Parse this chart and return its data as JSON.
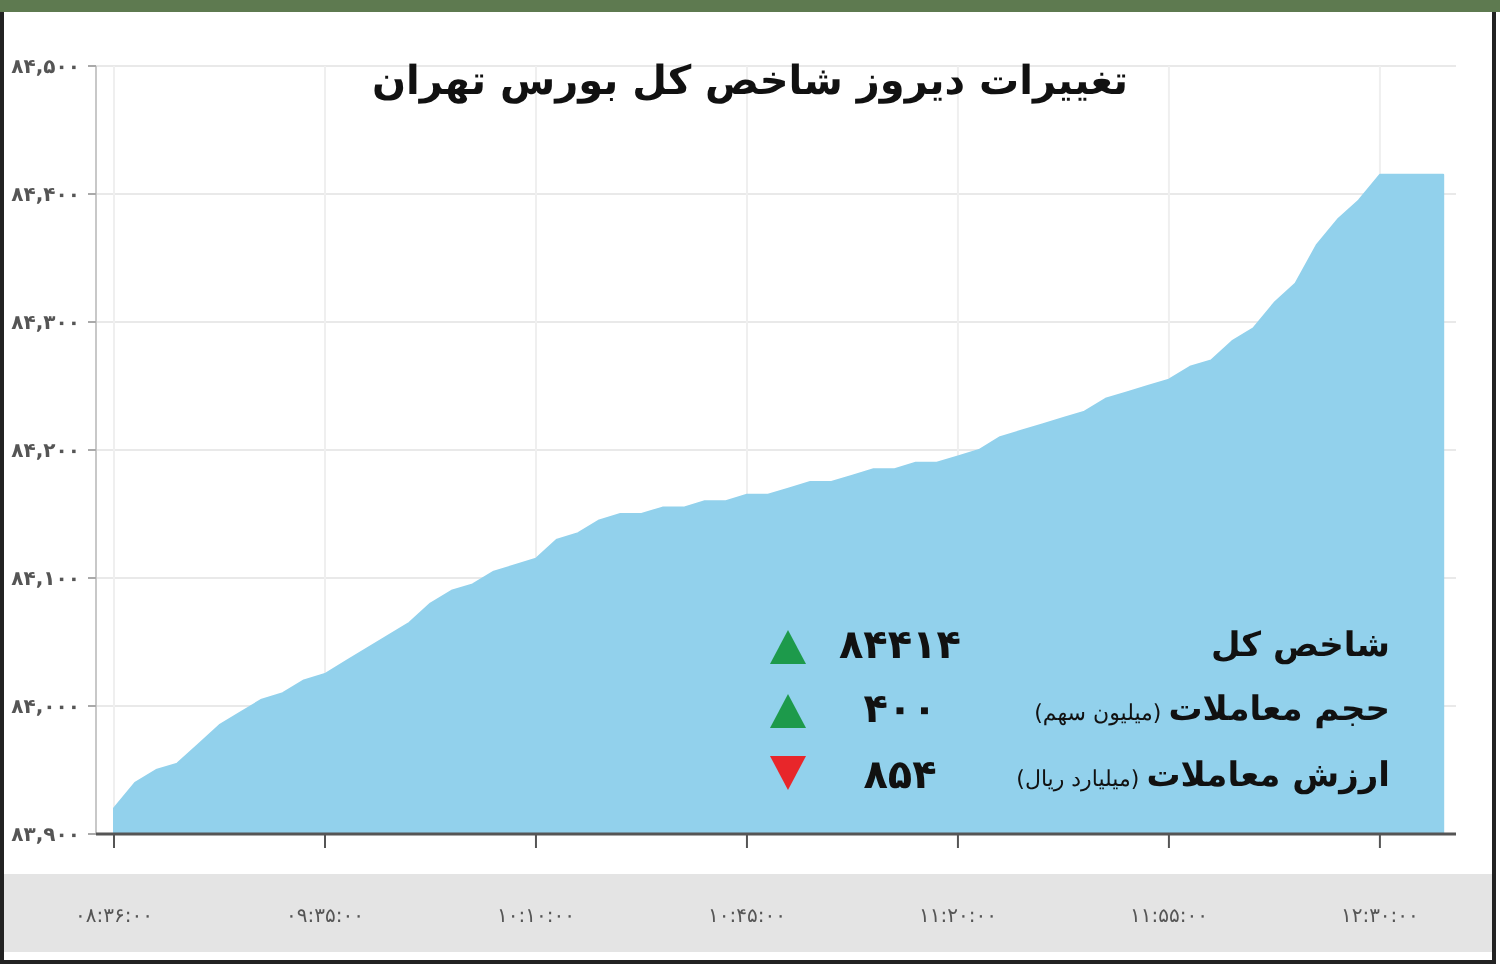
{
  "chart_data": {
    "type": "area",
    "title": "تغییرات دیروز شاخص کل بورس تهران",
    "categories": [
      "۰۸:۳۶:۰۰",
      null,
      null,
      null,
      null,
      null,
      null,
      null,
      null,
      null,
      "۰۹:۳۵:۰۰",
      null,
      null,
      null,
      null,
      null,
      null,
      null,
      null,
      null,
      "۱۰:۱۰:۰۰",
      null,
      null,
      null,
      null,
      null,
      null,
      null,
      null,
      null,
      "۱۰:۴۵:۰۰",
      null,
      null,
      null,
      null,
      null,
      null,
      null,
      null,
      null,
      "۱۱:۲۰:۰۰",
      null,
      null,
      null,
      null,
      null,
      null,
      null,
      null,
      null,
      "۱۱:۵۵:۰۰",
      null,
      null,
      null,
      null,
      null,
      null,
      null,
      null,
      null,
      "۱۲:۳۰:۰۰",
      null,
      null,
      null
    ],
    "values": [
      83920,
      83940,
      83950,
      83955,
      83970,
      83985,
      83995,
      84005,
      84010,
      84020,
      84025,
      84035,
      84045,
      84055,
      84065,
      84080,
      84090,
      84095,
      84105,
      84110,
      84115,
      84130,
      84135,
      84145,
      84150,
      84150,
      84155,
      84155,
      84160,
      84160,
      84165,
      84165,
      84170,
      84175,
      84175,
      84180,
      84185,
      84185,
      84190,
      84190,
      84195,
      84200,
      84210,
      84215,
      84220,
      84225,
      84230,
      84240,
      84245,
      84250,
      84255,
      84265,
      84270,
      84285,
      84295,
      84315,
      84330,
      84360,
      84380,
      84395,
      84415,
      84415,
      84415,
      84415
    ],
    "color": "#92d1ec",
    "ylim": [
      83900,
      84500
    ],
    "yticks": [
      {
        "value": 83900,
        "label": "۸۳,۹۰۰"
      },
      {
        "value": 84000,
        "label": "۸۴,۰۰۰"
      },
      {
        "value": 84100,
        "label": "۸۴,۱۰۰"
      },
      {
        "value": 84200,
        "label": "۸۴,۲۰۰"
      },
      {
        "value": 84300,
        "label": "۸۴,۳۰۰"
      },
      {
        "value": 84400,
        "label": "۸۴,۴۰۰"
      },
      {
        "value": 84500,
        "label": "۸۴,۵۰۰"
      }
    ],
    "grid": true,
    "annotations": [
      "شاخص کل",
      "۸۴۴۱۴",
      "حجم معاملات (میلیون سهم)",
      "۴۰۰",
      "ارزش معاملات (میلیارد ریال)",
      "۸۵۴"
    ]
  }
}
